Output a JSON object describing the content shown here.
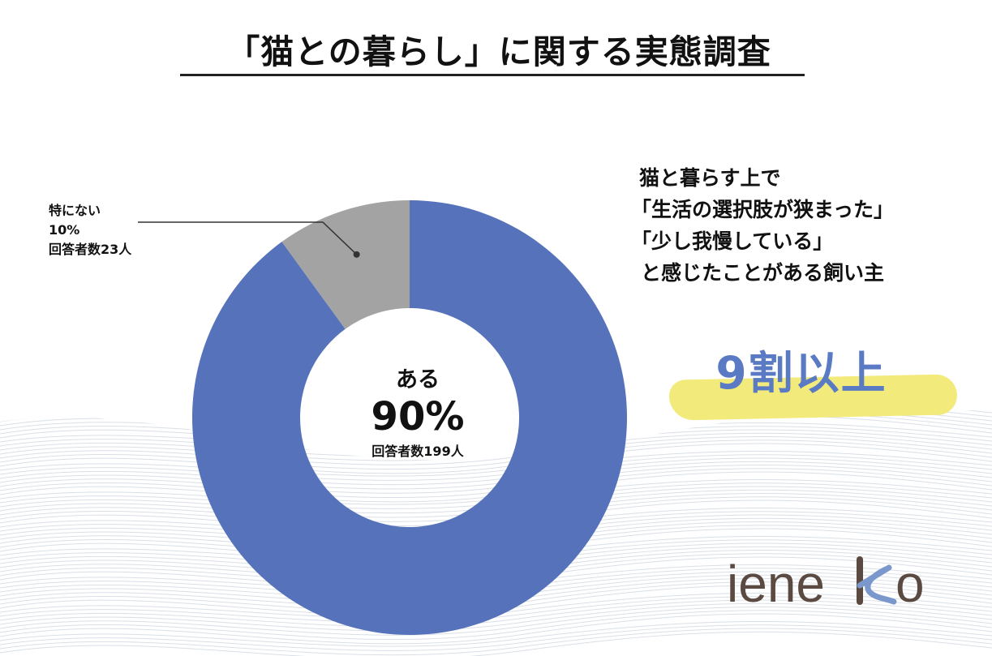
{
  "title": "「猫との暮らし」に関する実態調査",
  "chart_data": {
    "type": "pie",
    "categories": [
      "ある",
      "特にない"
    ],
    "values": [
      90,
      10
    ],
    "counts": [
      "回答者数199人",
      "回答者数23人"
    ],
    "labels": {
      "main": {
        "name": "ある",
        "percent": "90%",
        "count": "回答者数199人"
      },
      "other": {
        "name": "特にない",
        "percent": "10%",
        "count": "回答者数23人"
      }
    },
    "colors": {
      "main": "#5672bb",
      "other": "#a3a3a3"
    }
  },
  "callout": {
    "lines": [
      "猫と暮らす上で",
      "「生活の選択肢が狭まった」",
      "「少し我慢している」",
      "と感じたことがある飼い主"
    ],
    "headline": "9割以上",
    "headline_color": "#5a7bc3",
    "highlight_color": "#f3ea7c"
  },
  "logo": {
    "text": "ieneko",
    "text_color": "#5b4a42",
    "accent_color": "#7a98cc"
  }
}
